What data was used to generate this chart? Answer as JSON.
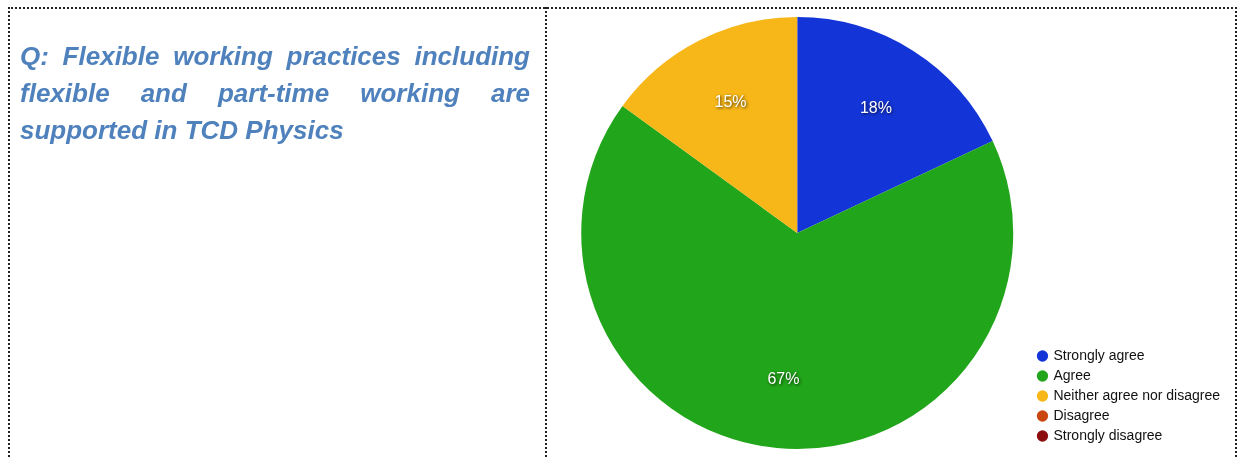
{
  "chart_data": {
    "type": "pie",
    "title": "Q: Flexible working practices including flexible and part-time working are supported in TCD Physics",
    "categories": [
      "Strongly agree",
      "Agree",
      "Neither agree nor disagree",
      "Disagree",
      "Strongly disagree"
    ],
    "values": [
      18,
      67,
      15,
      0,
      0
    ],
    "colors": [
      "#1335d8",
      "#21a51a",
      "#f7b718",
      "#c9460f",
      "#8c0d0d"
    ],
    "value_labels": [
      "18%",
      "67%",
      "15%",
      null,
      null
    ],
    "legend": "bottom right"
  }
}
